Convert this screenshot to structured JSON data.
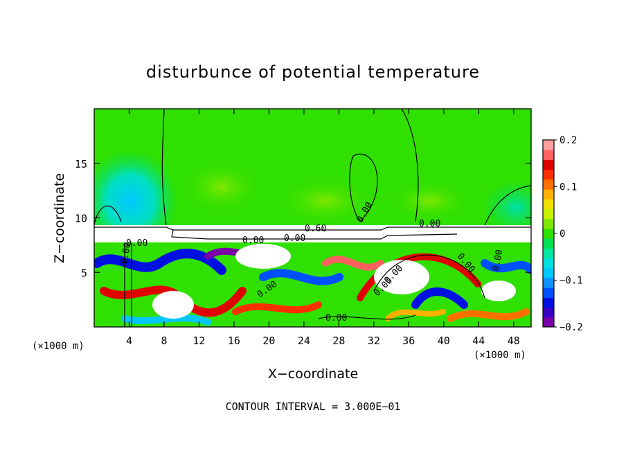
{
  "chart_data": {
    "type": "heatmap",
    "title": "disturbunce of potential temperature",
    "xlabel": "X−coordinate",
    "ylabel": "Z−coordinate",
    "x_unit_left": "(×1000 m)",
    "x_unit_right": "(×1000 m)",
    "xlim": [
      0,
      50
    ],
    "ylim": [
      0,
      20
    ],
    "x_ticks": [
      4,
      8,
      12,
      16,
      20,
      24,
      28,
      32,
      36,
      40,
      44,
      48
    ],
    "y_ticks": [
      5,
      10,
      15
    ],
    "colorbar": {
      "range": [
        -0.2,
        0.2
      ],
      "tick_labels": [
        "0.2",
        "0.1",
        "0",
        "−0.1",
        "−0.2"
      ],
      "tick_values": [
        0.2,
        0.1,
        0,
        -0.1,
        -0.2
      ],
      "colors": [
        "#7b00a8",
        "#3a00c8",
        "#0010e0",
        "#0050ff",
        "#1090ff",
        "#00c8ff",
        "#00e0e0",
        "#00e8a0",
        "#00e050",
        "#30e000",
        "#80e800",
        "#c8f000",
        "#f0e000",
        "#ffb000",
        "#ff7000",
        "#ff3000",
        "#e00000",
        "#ff6060",
        "#ffa0a0"
      ]
    },
    "contour_labels": [
      "0.00",
      "0.00",
      "0.00",
      "0.00",
      "0.60",
      "0.00",
      "0.00",
      "0.00",
      "0.00",
      "0.00",
      "0.00",
      "0.00",
      "0.00"
    ],
    "footnote": "CONTOUR INTERVAL = 3.000E−01"
  }
}
